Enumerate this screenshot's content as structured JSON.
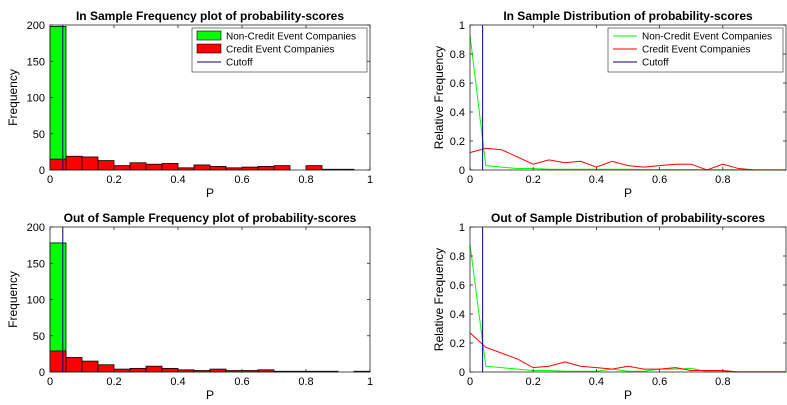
{
  "colors": {
    "non_credit": "#00ff00",
    "credit": "#ff0000",
    "cutoff": "#00007f",
    "bar_edge": "#000000"
  },
  "legend": {
    "non_credit": "Non-Credit Event Companies",
    "credit": "Credit Event Companies",
    "cutoff": "Cutoff"
  },
  "chart_data": [
    {
      "type": "bar",
      "title": "In Sample Frequency plot of probability-scores",
      "xlabel": "P",
      "ylabel": "Frequency",
      "xlim": [
        0,
        1
      ],
      "ylim": [
        0,
        200
      ],
      "xticks": [
        "0",
        "0.2",
        "0.4",
        "0.6",
        "0.8",
        "1"
      ],
      "yticks": [
        "0",
        "50",
        "100",
        "150",
        "200"
      ],
      "bin_width": 0.05,
      "cutoff": 0.04,
      "legend_position": "top-right",
      "series": [
        {
          "name": "Non-Credit Event Companies",
          "bins": [
            0
          ],
          "values": [
            198
          ]
        },
        {
          "name": "Credit Event Companies",
          "bins": [
            0,
            0.05,
            0.1,
            0.15,
            0.2,
            0.25,
            0.3,
            0.35,
            0.4,
            0.45,
            0.5,
            0.55,
            0.6,
            0.65,
            0.7,
            0.75,
            0.8,
            0.85,
            0.9,
            0.95
          ],
          "values": [
            15,
            19,
            18,
            13,
            6,
            10,
            8,
            9,
            3,
            7,
            5,
            3,
            4,
            5,
            6,
            0,
            6,
            1,
            1,
            0
          ]
        },
        {
          "name": "Cutoff",
          "x": 0.04
        }
      ]
    },
    {
      "type": "line",
      "title": "In Sample Distribution of probability-scores",
      "xlabel": "P",
      "ylabel": "Relative Frequency",
      "xlim": [
        0,
        1
      ],
      "ylim": [
        0,
        1
      ],
      "xticks": [
        "0",
        "0.2",
        "0.4",
        "0.6",
        "0.8"
      ],
      "yticks": [
        "0",
        "0.2",
        "0.4",
        "0.6",
        "0.8",
        "1"
      ],
      "cutoff": 0.04,
      "legend_position": "top-right",
      "x": [
        0,
        0.05,
        0.1,
        0.15,
        0.2,
        0.25,
        0.3,
        0.35,
        0.4,
        0.45,
        0.5,
        0.55,
        0.6,
        0.65,
        0.7,
        0.75,
        0.8,
        0.85,
        0.9,
        0.95,
        1.0
      ],
      "series": [
        {
          "name": "Non-Credit Event Companies",
          "values": [
            0.93,
            0.03,
            0.02,
            0.01,
            0.01,
            0.005,
            0.005,
            0.005,
            0.005,
            0.005,
            0.005,
            0.003,
            0.003,
            0.003,
            0.003,
            0.002,
            0.002,
            0.002,
            0.002,
            0.002,
            0.002
          ]
        },
        {
          "name": "Credit Event Companies",
          "values": [
            0.12,
            0.15,
            0.14,
            0.09,
            0.04,
            0.07,
            0.05,
            0.06,
            0.02,
            0.06,
            0.03,
            0.02,
            0.03,
            0.04,
            0.04,
            0.0,
            0.04,
            0.01,
            0.0,
            0.0,
            0.0
          ]
        },
        {
          "name": "Cutoff",
          "x": 0.04
        }
      ]
    },
    {
      "type": "bar",
      "title": "Out of Sample Frequency plot of probability-scores",
      "xlabel": "P",
      "ylabel": "Frequency",
      "xlim": [
        0,
        1
      ],
      "ylim": [
        0,
        200
      ],
      "xticks": [
        "0",
        "0.2",
        "0.4",
        "0.6",
        "0.8",
        "1"
      ],
      "yticks": [
        "0",
        "50",
        "100",
        "150",
        "200"
      ],
      "bin_width": 0.05,
      "cutoff": 0.04,
      "series": [
        {
          "name": "Non-Credit Event Companies",
          "bins": [
            0
          ],
          "values": [
            178
          ]
        },
        {
          "name": "Credit Event Companies",
          "bins": [
            0,
            0.05,
            0.1,
            0.15,
            0.2,
            0.25,
            0.3,
            0.35,
            0.4,
            0.45,
            0.5,
            0.55,
            0.6,
            0.65,
            0.7,
            0.75,
            0.8,
            0.85,
            0.9,
            0.95
          ],
          "values": [
            29,
            20,
            15,
            10,
            4,
            5,
            8,
            5,
            3,
            2,
            4,
            2,
            2,
            3,
            1,
            1,
            1,
            1,
            0,
            1
          ]
        },
        {
          "name": "Cutoff",
          "x": 0.04
        }
      ]
    },
    {
      "type": "line",
      "title": "Out of Sample Distribution of probability-scores",
      "xlabel": "P",
      "ylabel": "Relative Frequency",
      "xlim": [
        0,
        1
      ],
      "ylim": [
        0,
        1
      ],
      "xticks": [
        "0",
        "0.2",
        "0.4",
        "0.6",
        "0.8"
      ],
      "yticks": [
        "0",
        "0.2",
        "0.4",
        "0.6",
        "0.8",
        "1"
      ],
      "cutoff": 0.04,
      "x": [
        0,
        0.05,
        0.1,
        0.15,
        0.2,
        0.25,
        0.3,
        0.35,
        0.4,
        0.45,
        0.5,
        0.55,
        0.6,
        0.65,
        0.7,
        0.75,
        0.8,
        0.85,
        0.9,
        0.95,
        1.0
      ],
      "series": [
        {
          "name": "Non-Credit Event Companies",
          "values": [
            0.88,
            0.04,
            0.03,
            0.02,
            0.01,
            0.01,
            0.005,
            0.005,
            0.005,
            0.02,
            0.005,
            0.005,
            0.02,
            0.02,
            0.025,
            0.003,
            0.003,
            0.003,
            0.003,
            0.003,
            0.003
          ]
        },
        {
          "name": "Credit Event Companies",
          "values": [
            0.27,
            0.17,
            0.13,
            0.09,
            0.03,
            0.04,
            0.07,
            0.04,
            0.03,
            0.02,
            0.04,
            0.02,
            0.02,
            0.03,
            0.01,
            0.01,
            0.01,
            0.0,
            0.0,
            0.0,
            0.0
          ]
        },
        {
          "name": "Cutoff",
          "x": 0.04
        }
      ]
    }
  ]
}
